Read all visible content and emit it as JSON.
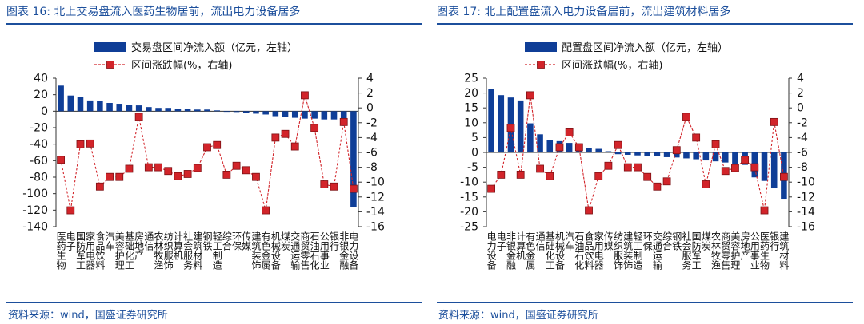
{
  "chart_data": [
    {
      "type": "bar",
      "title": "图表 16:  北上交易盘流入医药生物居前，流出电力设备居多",
      "source": "资料来源：wind，国盛证券研究所",
      "legend": {
        "bar_label": "交易盘区间净流入额（亿元，左轴）",
        "line_label": "区间涨跌幅(%，右轴)",
        "placement": "top-center"
      },
      "left_axis": {
        "min": -140,
        "max": 40,
        "step": 20,
        "tick_labels": [
          "40",
          "20",
          "0",
          "-20",
          "-40",
          "-60",
          "-80",
          "-100",
          "-120",
          "-140"
        ]
      },
      "right_axis": {
        "min": -16,
        "max": 4,
        "step": 2,
        "tick_labels": [
          "4",
          "2",
          "0",
          "-2",
          "-4",
          "-6",
          "-8",
          "-10",
          "-12",
          "-14",
          "-16"
        ]
      },
      "categories": [
        "医药生物",
        "电子",
        "国防军工",
        "家用电器",
        "食品饮料",
        "汽车",
        "美容护理",
        "基础化工",
        "房地产",
        "通信",
        "农林牧渔",
        "纺织服饰",
        "计算机",
        "社会服务",
        "建筑材料",
        "钢铁",
        "轻工制造",
        "综合",
        "环保",
        "传媒",
        "建筑装饰",
        "有色金属",
        "机械设备",
        "煤炭",
        "交通运输",
        "商贸零售",
        "石油石化",
        "公用事业",
        "银行",
        "非银金融",
        "电力设备"
      ],
      "series": [
        {
          "name": "交易盘区间净流入额（亿元，左轴）",
          "axis": "left",
          "values": [
            31,
            19,
            17,
            13,
            12,
            10,
            9,
            8,
            7,
            5,
            4,
            4,
            3,
            3,
            2,
            2,
            1,
            0,
            -1,
            -2,
            -3,
            -4,
            -6,
            -7,
            -8,
            -9,
            -9,
            -10,
            -10,
            -12,
            -116
          ]
        },
        {
          "name": "区间涨跌幅(%，右轴)",
          "axis": "right",
          "values": [
            -7.0,
            -13.8,
            -4.9,
            -4.8,
            -10.6,
            -9.3,
            -9.3,
            -8.2,
            -1.2,
            -8.0,
            -8.0,
            -8.5,
            -9.2,
            -8.9,
            -8.1,
            -5.3,
            -5.0,
            -9.0,
            -7.8,
            -8.4,
            -9.3,
            -13.8,
            -4.0,
            -3.5,
            -5.2,
            1.7,
            -2.7,
            -10.3,
            -10.6,
            -1.9,
            -10.9
          ]
        }
      ]
    },
    {
      "type": "bar",
      "title": "图表 17:  北上配置盘流入电力设备居前，流出建筑材料居多",
      "source": "资料来源：wind，国盛证券研究所",
      "legend": {
        "bar_label": "配置盘区间净流入额（亿元，左轴）",
        "line_label": "区间涨跌幅(%，右轴)",
        "placement": "top-center"
      },
      "left_axis": {
        "min": -25,
        "max": 25,
        "step": 5,
        "tick_labels": [
          "25",
          "20",
          "15",
          "10",
          "5",
          "0",
          "-5",
          "-10",
          "-15",
          "-20",
          "-25"
        ]
      },
      "right_axis": {
        "min": -16,
        "max": 4,
        "step": 2,
        "tick_labels": [
          "4",
          "2",
          "0",
          "-2",
          "-4",
          "-6",
          "-8",
          "-10",
          "-12",
          "-14",
          "-16"
        ]
      },
      "categories": [
        "电力设备",
        "电子",
        "非银金融",
        "计算机",
        "有色金属",
        "通信",
        "基础化工",
        "机械设备",
        "汽车",
        "石油石化",
        "食品饮料",
        "家用电器",
        "传媒",
        "纺织服饰",
        "建筑装饰",
        "轻工制造",
        "环保",
        "交通运输",
        "综合",
        "钢铁",
        "社会服务",
        "国防军工",
        "煤炭",
        "农林牧渔",
        "商贸零售",
        "美容护理",
        "房地产",
        "公用事业",
        "医药生物",
        "银行",
        "建筑材料"
      ],
      "series": [
        {
          "name": "配置盘区间净流入额（亿元，左轴）",
          "axis": "left",
          "values": [
            21.5,
            19.3,
            18.5,
            17.5,
            9.8,
            6.1,
            4.2,
            3.8,
            3.2,
            1.9,
            1.6,
            1.2,
            0.4,
            -0.6,
            -0.8,
            -1.0,
            -1.1,
            -1.3,
            -1.6,
            -1.7,
            -2.0,
            -2.3,
            -2.7,
            -3.0,
            -3.4,
            -3.9,
            -4.2,
            -8.4,
            -9.6,
            -12.1,
            -15.6
          ]
        },
        {
          "name": "区间涨跌幅(%，右轴)",
          "axis": "right",
          "values": [
            -10.9,
            -9.0,
            -2.7,
            -9.0,
            1.7,
            -8.2,
            -9.2,
            -5.3,
            -3.3,
            -5.3,
            -13.8,
            -9.2,
            -7.8,
            -5.0,
            -8.0,
            -8.0,
            -9.3,
            -10.6,
            -9.9,
            -5.7,
            -1.2,
            -4.0,
            -10.3,
            -4.9,
            -8.5,
            -8.1,
            -7.0,
            -8.0,
            -13.8,
            -1.9,
            -9.3
          ]
        }
      ]
    }
  ]
}
